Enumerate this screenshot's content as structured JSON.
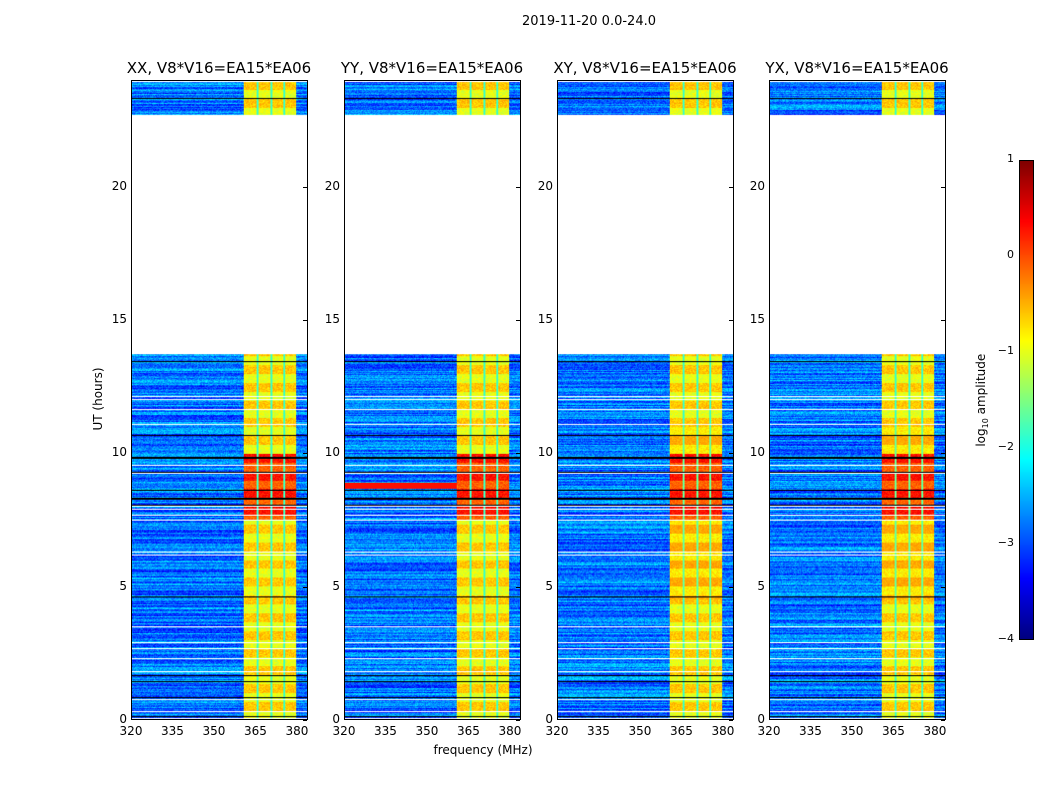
{
  "chart_data": {
    "type": "heatmap",
    "title": "2019-11-20 0.0-24.0",
    "xlabel": "frequency (MHz)",
    "ylabel": "UT (hours)",
    "xlim": [
      320,
      384
    ],
    "ylim": [
      0,
      24
    ],
    "xticks": [
      "320",
      "335",
      "350",
      "365",
      "380"
    ],
    "yticks": [
      "0",
      "5",
      "10",
      "15",
      "20"
    ],
    "panels": [
      {
        "title": "XX, V8*V16=EA15*EA06"
      },
      {
        "title": "YY, V8*V16=EA15*EA06"
      },
      {
        "title": "XY, V8*V16=EA15*EA06"
      },
      {
        "title": "YX, V8*V16=EA15*EA06"
      }
    ],
    "blank_interval_hours": [
      13.75,
      22.75
    ],
    "rfi_band_mhz": [
      360.5,
      380
    ],
    "rfi_peak_hours": [
      7.5,
      10
    ],
    "colorbar": {
      "label_prefix": "log",
      "label_sub": "10",
      "label_suffix": " amplitude",
      "range": [
        -4,
        1
      ],
      "ticks": [
        "1",
        "0",
        "−1",
        "−2",
        "−3",
        "−4"
      ],
      "colormap": "jet"
    }
  }
}
